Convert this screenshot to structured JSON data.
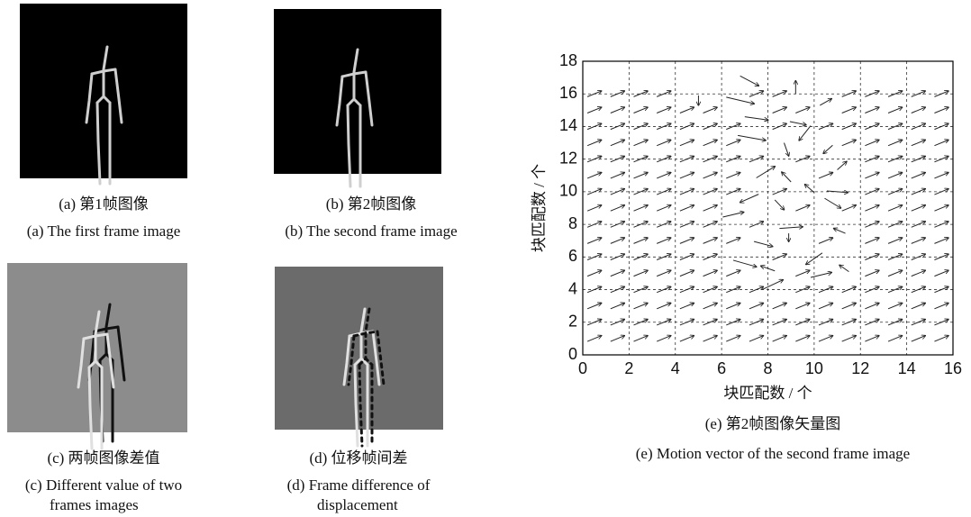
{
  "panels": [
    {
      "caption_zh": "(a)  第1帧图像",
      "caption_en": [
        "(a)  The first frame image"
      ]
    },
    {
      "caption_zh": "(b)  第2帧图像",
      "caption_en": [
        "(b)  The second frame image"
      ]
    },
    {
      "caption_zh": "(c)  两帧图像差值",
      "caption_en": [
        "(c)  Different value of two",
        "frames images"
      ]
    },
    {
      "caption_zh": "(d)  位移帧间差",
      "caption_en": [
        "(d)  Frame difference of",
        "displacement"
      ]
    }
  ],
  "chart_data": {
    "type": "quiver",
    "xlabel": "块匹配数 / 个",
    "ylabel": "块匹配数 / 个",
    "caption_zh": "(e)  第2帧图像矢量图",
    "caption_en": "(e)  Motion vector of the second frame image",
    "xlim": [
      0,
      16
    ],
    "ylim": [
      0,
      18
    ],
    "xticks": [
      0,
      2,
      4,
      6,
      8,
      10,
      12,
      14,
      16
    ],
    "yticks": [
      0,
      2,
      4,
      6,
      8,
      10,
      12,
      14,
      16,
      18
    ],
    "grid": true,
    "color": "#222222",
    "background_vector": {
      "x": [
        0.5,
        1.5,
        2.5,
        3.5,
        4.5,
        5.5,
        6.5,
        7.5,
        8.5,
        9.5,
        10.5,
        11.5,
        12.5,
        13.5,
        14.5,
        15.5
      ],
      "y": [
        1,
        2,
        3,
        4,
        5,
        6,
        7,
        8,
        9,
        10,
        11,
        12,
        13,
        14,
        15,
        16
      ],
      "u": 0.6,
      "v": 0.35
    },
    "vectors": [
      [
        5,
        15.6,
        0,
        -0.6
      ],
      [
        7.2,
        16.8,
        0.8,
        -0.6
      ],
      [
        9.2,
        16.4,
        0,
        0.8
      ],
      [
        6.8,
        15.6,
        1.2,
        -0.4
      ],
      [
        10.5,
        15.5,
        0.5,
        0.4
      ],
      [
        7.5,
        14.5,
        1,
        -0.2
      ],
      [
        9.3,
        14.2,
        0.7,
        -0.2
      ],
      [
        9.6,
        13.6,
        -0.5,
        -0.9
      ],
      [
        7.3,
        13.3,
        1.2,
        -0.3
      ],
      [
        10.6,
        12.6,
        -0.4,
        -0.5
      ],
      [
        8.8,
        12.6,
        0.2,
        -0.8
      ],
      [
        11.2,
        11.6,
        0.4,
        0.5
      ],
      [
        7.9,
        11.2,
        0.8,
        0.7
      ],
      [
        8.8,
        10.9,
        -0.4,
        0.6
      ],
      [
        9.8,
        10.2,
        -0.4,
        0.5
      ],
      [
        11,
        10,
        0.9,
        -0.1
      ],
      [
        7.2,
        9.6,
        -0.8,
        -0.5
      ],
      [
        8.5,
        9.2,
        0.4,
        -0.6
      ],
      [
        10.8,
        9.3,
        0.7,
        -0.6
      ],
      [
        6.5,
        8.6,
        0.9,
        0.3
      ],
      [
        9,
        7.8,
        1,
        0.1
      ],
      [
        11.1,
        7.6,
        -0.5,
        0.3
      ],
      [
        7.8,
        6.8,
        0.8,
        -0.3
      ],
      [
        8.9,
        7.2,
        0,
        -0.5
      ],
      [
        10,
        5.9,
        -0.7,
        -0.7
      ],
      [
        7,
        5.6,
        1,
        -0.4
      ],
      [
        8,
        5.3,
        -0.6,
        0.3
      ],
      [
        10.3,
        4.9,
        0.9,
        0.3
      ],
      [
        8.2,
        4.3,
        0.9,
        0.6
      ],
      [
        11.3,
        5.3,
        -0.4,
        0.4
      ]
    ]
  }
}
